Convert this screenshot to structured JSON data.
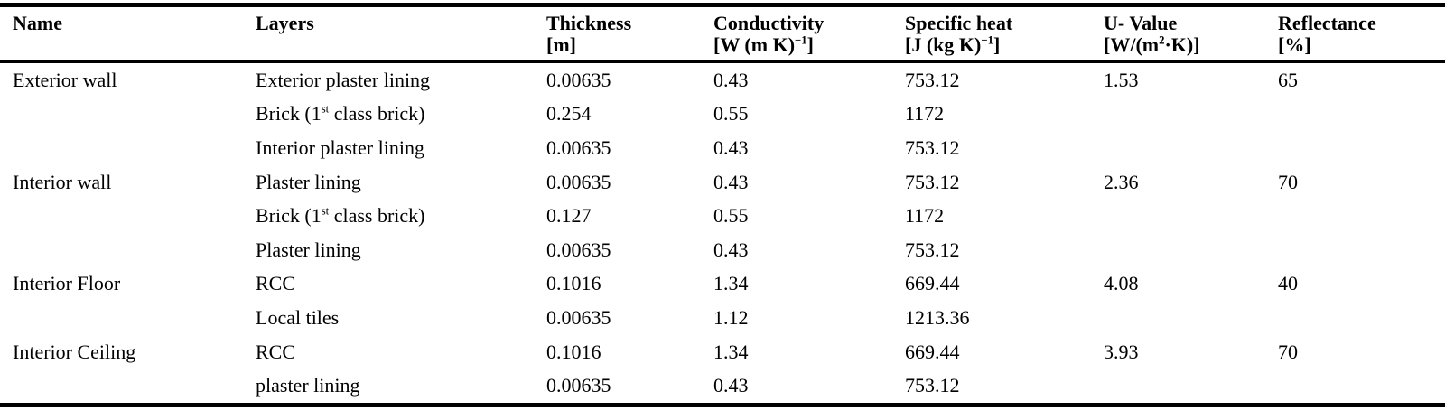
{
  "page": {
    "background": "#ffffff",
    "text_color": "#000000",
    "rule_color": "#000000"
  },
  "table": {
    "columns": [
      {
        "key": "name",
        "label": "Name",
        "unit": ""
      },
      {
        "key": "layer",
        "label": "Layers",
        "unit": ""
      },
      {
        "key": "thickness",
        "label": "Thickness",
        "unit": "[m]"
      },
      {
        "key": "conductivity",
        "label": "Conductivity",
        "unit": "[W (m K)^{−1}]"
      },
      {
        "key": "specific_heat",
        "label": "Specific heat",
        "unit": "[J (kg K)^{−1}]"
      },
      {
        "key": "u_value",
        "label": "U- Value",
        "unit": "[W/(m^{2}·K)]"
      },
      {
        "key": "reflectance",
        "label": "Reflectance",
        "unit": "[%]"
      }
    ],
    "rows": [
      {
        "name": "Exterior wall",
        "layer": "Exterior plaster lining",
        "thickness": "0.00635",
        "conductivity": "0.43",
        "specific_heat": "753.12",
        "u_value": "1.53",
        "reflectance": "65"
      },
      {
        "name": "",
        "layer": "Brick (1^{st} class brick)",
        "thickness": "0.254",
        "conductivity": "0.55",
        "specific_heat": "1172",
        "u_value": "",
        "reflectance": ""
      },
      {
        "name": "",
        "layer": "Interior plaster lining",
        "thickness": "0.00635",
        "conductivity": "0.43",
        "specific_heat": "753.12",
        "u_value": "",
        "reflectance": ""
      },
      {
        "name": "Interior wall",
        "layer": "Plaster lining",
        "thickness": "0.00635",
        "conductivity": "0.43",
        "specific_heat": "753.12",
        "u_value": "2.36",
        "reflectance": "70"
      },
      {
        "name": "",
        "layer": "Brick (1^{st} class brick)",
        "thickness": "0.127",
        "conductivity": "0.55",
        "specific_heat": "1172",
        "u_value": "",
        "reflectance": ""
      },
      {
        "name": "",
        "layer": "Plaster lining",
        "thickness": "0.00635",
        "conductivity": "0.43",
        "specific_heat": "753.12",
        "u_value": "",
        "reflectance": ""
      },
      {
        "name": "Interior Floor",
        "layer": "RCC",
        "thickness": "0.1016",
        "conductivity": "1.34",
        "specific_heat": "669.44",
        "u_value": "4.08",
        "reflectance": "40"
      },
      {
        "name": "",
        "layer": "Local tiles",
        "thickness": "0.00635",
        "conductivity": "1.12",
        "specific_heat": "1213.36",
        "u_value": "",
        "reflectance": ""
      },
      {
        "name": "Interior Ceiling",
        "layer": "RCC",
        "thickness": "0.1016",
        "conductivity": "1.34",
        "specific_heat": "669.44",
        "u_value": "3.93",
        "reflectance": "70"
      },
      {
        "name": "",
        "layer": "plaster lining",
        "thickness": "0.00635",
        "conductivity": "0.43",
        "specific_heat": "753.12",
        "u_value": "",
        "reflectance": ""
      }
    ]
  }
}
